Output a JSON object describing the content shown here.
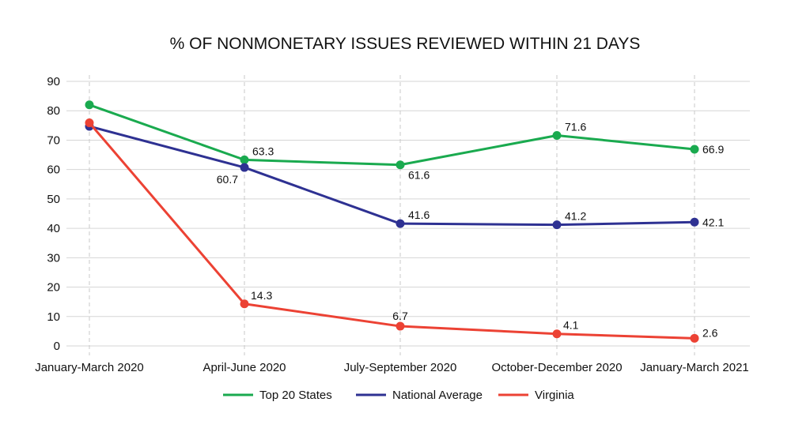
{
  "chart_data": {
    "type": "line",
    "title": "% OF NONMONETARY ISSUES REVIEWED WITHIN 21 DAYS",
    "categories": [
      "January-March 2020",
      "April-June 2020",
      "July-September 2020",
      "October-December 2020",
      "January-March 2021"
    ],
    "ylim": [
      0,
      90
    ],
    "yticks": [
      0,
      10,
      20,
      30,
      40,
      50,
      60,
      70,
      80,
      90
    ],
    "grid": "horizontal solid, vertical dashed at categories",
    "legend_position": "bottom-center",
    "series": [
      {
        "name": "Top 20 States",
        "color": "#1aaa4f",
        "values": [
          82,
          63.3,
          61.6,
          71.6,
          66.9
        ],
        "labels": [
          "",
          "63.3",
          "61.6",
          "71.6",
          "66.9"
        ]
      },
      {
        "name": "National Average",
        "color": "#2e3192",
        "values": [
          74.7,
          60.7,
          41.6,
          41.2,
          42.1
        ],
        "labels": [
          "",
          "60.7",
          "41.6",
          "41.2",
          "42.1"
        ]
      },
      {
        "name": "Virginia",
        "color": "#ec4234",
        "values": [
          75.9,
          14.3,
          6.7,
          4.1,
          2.6
        ],
        "labels": [
          "",
          "14.3",
          "6.7",
          "4.1",
          "2.6"
        ]
      }
    ]
  }
}
